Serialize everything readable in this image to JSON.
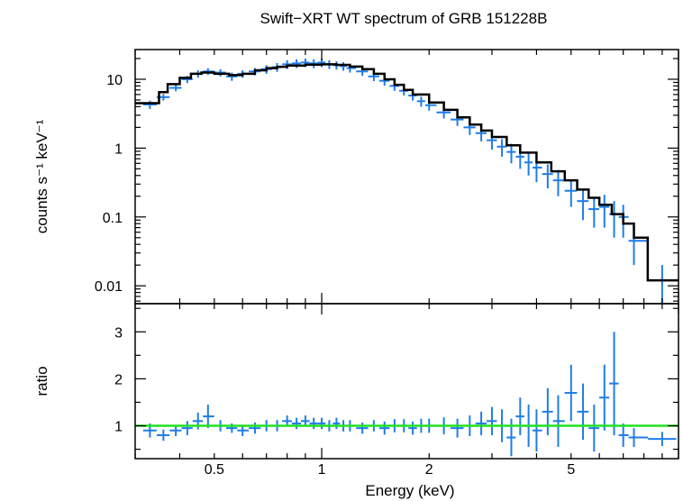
{
  "chart_data": [
    {
      "type": "line",
      "panel": "spectrum",
      "title": "Swift−XRT WT spectrum of GRB 151228B",
      "xlabel": "",
      "ylabel": "counts s⁻¹ keV⁻¹",
      "xscale": "log",
      "yscale": "log",
      "xlim": [
        0.3,
        10
      ],
      "ylim": [
        0.0055,
        27
      ],
      "x_ticklabels": [],
      "y_ticklabels": [
        "10",
        "1",
        "0.1",
        "0.01"
      ],
      "y_ticks": [
        10,
        1,
        0.1,
        0.01
      ],
      "series": [
        {
          "color": "#1e7de8",
          "style": "crosses",
          "x": [
            0.33,
            0.36,
            0.39,
            0.42,
            0.45,
            0.48,
            0.52,
            0.56,
            0.6,
            0.65,
            0.7,
            0.75,
            0.8,
            0.85,
            0.9,
            0.95,
            1.0,
            1.05,
            1.1,
            1.15,
            1.2,
            1.3,
            1.4,
            1.5,
            1.6,
            1.7,
            1.8,
            1.9,
            2.0,
            2.2,
            2.4,
            2.6,
            2.8,
            3.0,
            3.2,
            3.4,
            3.6,
            3.8,
            4.0,
            4.3,
            4.6,
            5.0,
            5.4,
            5.8,
            6.2,
            6.6,
            7.0,
            7.5,
            9.0
          ],
          "y": [
            4.3,
            5.5,
            7.5,
            10,
            12,
            13,
            12.5,
            11,
            12,
            13,
            14,
            15,
            16.5,
            17,
            17.5,
            17,
            17.5,
            16.5,
            16,
            15.5,
            14.5,
            13,
            11,
            9.5,
            8,
            6.8,
            5.8,
            4.8,
            4.2,
            3.3,
            2.6,
            2.0,
            1.65,
            1.3,
            1.05,
            0.88,
            0.75,
            0.62,
            0.52,
            0.42,
            0.34,
            0.24,
            0.17,
            0.13,
            0.14,
            0.11,
            0.1,
            0.045,
            0.012
          ],
          "yerr": [
            0.6,
            0.6,
            0.8,
            1.2,
            1.5,
            1.5,
            1.5,
            1.5,
            1.5,
            1.6,
            2,
            2.2,
            2.4,
            2.5,
            2.5,
            2.5,
            2.5,
            2.4,
            2.2,
            2.2,
            2,
            1.8,
            1.6,
            1.4,
            1.2,
            1,
            0.9,
            0.8,
            0.7,
            0.6,
            0.5,
            0.45,
            0.4,
            0.35,
            0.3,
            0.28,
            0.25,
            0.22,
            0.2,
            0.16,
            0.14,
            0.1,
            0.08,
            0.06,
            0.07,
            0.06,
            0.05,
            0.025,
            0.008
          ]
        },
        {
          "color": "#000000",
          "style": "step",
          "x": [
            0.3,
            0.35,
            0.37,
            0.4,
            0.43,
            0.46,
            0.5,
            0.55,
            0.6,
            0.65,
            0.7,
            0.75,
            0.8,
            0.9,
            1.0,
            1.1,
            1.2,
            1.3,
            1.4,
            1.5,
            1.6,
            1.7,
            1.8,
            2.0,
            2.2,
            2.4,
            2.6,
            2.8,
            3.0,
            3.3,
            3.6,
            4.0,
            4.4,
            4.8,
            5.2,
            5.6,
            6.0,
            6.5,
            7.0,
            7.5,
            8.2,
            10.0
          ],
          "y": [
            4.5,
            6.5,
            8.5,
            10.5,
            12,
            12.5,
            12,
            11.5,
            12,
            13.5,
            14.5,
            15.2,
            15.8,
            16.3,
            16.5,
            16.2,
            15.3,
            14,
            12,
            10,
            8.3,
            7,
            6,
            4.6,
            3.6,
            2.8,
            2.2,
            1.8,
            1.45,
            1.1,
            0.86,
            0.62,
            0.46,
            0.34,
            0.25,
            0.19,
            0.15,
            0.11,
            0.08,
            0.05,
            0.012,
            0.012
          ]
        }
      ]
    },
    {
      "type": "scatter",
      "panel": "ratio",
      "title": "",
      "xlabel": "Energy (keV)",
      "ylabel": "ratio",
      "xscale": "log",
      "yscale": "linear",
      "xlim": [
        0.3,
        10
      ],
      "ylim": [
        0.3,
        3.6
      ],
      "x_ticklabels": [
        "0.5",
        "1",
        "2",
        "5"
      ],
      "x_ticks": [
        0.5,
        1,
        2,
        5
      ],
      "y_ticklabels": [
        "1",
        "2",
        "3"
      ],
      "y_ticks": [
        1,
        2,
        3
      ],
      "reference_line": {
        "y": 1,
        "color": "#22e022"
      },
      "series": [
        {
          "color": "#1e7de8",
          "style": "crosses",
          "x": [
            0.33,
            0.36,
            0.39,
            0.42,
            0.45,
            0.48,
            0.52,
            0.56,
            0.6,
            0.65,
            0.7,
            0.75,
            0.8,
            0.85,
            0.9,
            0.95,
            1.0,
            1.05,
            1.1,
            1.15,
            1.2,
            1.3,
            1.4,
            1.5,
            1.6,
            1.7,
            1.8,
            1.9,
            2.0,
            2.2,
            2.4,
            2.6,
            2.8,
            3.0,
            3.2,
            3.4,
            3.6,
            3.8,
            4.0,
            4.3,
            4.6,
            5.0,
            5.4,
            5.8,
            6.2,
            6.6,
            7.0,
            7.5,
            9.0
          ],
          "y": [
            0.9,
            0.8,
            0.9,
            0.95,
            1.1,
            1.2,
            1.0,
            0.95,
            0.9,
            0.95,
            1.0,
            1.0,
            1.1,
            1.05,
            1.1,
            1.05,
            1.05,
            1.0,
            1.05,
            1.0,
            1.0,
            0.95,
            1.0,
            0.95,
            1.0,
            1.0,
            0.95,
            1.0,
            1.0,
            1.0,
            0.95,
            1.0,
            1.05,
            1.1,
            1.0,
            0.75,
            1.2,
            1.0,
            0.9,
            1.3,
            1.1,
            1.7,
            1.3,
            0.95,
            1.6,
            1.9,
            0.8,
            0.75,
            0.72
          ],
          "yerr": [
            0.15,
            0.12,
            0.12,
            0.15,
            0.18,
            0.25,
            0.12,
            0.1,
            0.12,
            0.12,
            0.12,
            0.12,
            0.12,
            0.12,
            0.12,
            0.12,
            0.12,
            0.12,
            0.12,
            0.12,
            0.12,
            0.12,
            0.12,
            0.14,
            0.14,
            0.14,
            0.14,
            0.15,
            0.15,
            0.18,
            0.2,
            0.22,
            0.25,
            0.3,
            0.35,
            0.4,
            0.4,
            0.45,
            0.45,
            0.5,
            0.55,
            0.6,
            0.6,
            0.5,
            0.7,
            1.1,
            0.25,
            0.2,
            0.15
          ]
        }
      ]
    }
  ]
}
